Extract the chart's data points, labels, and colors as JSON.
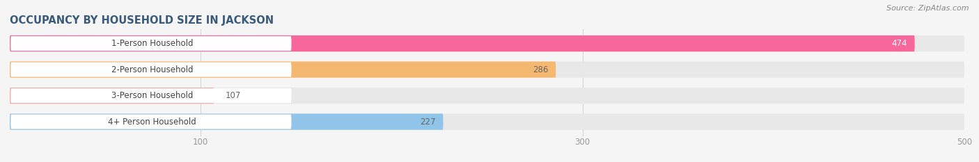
{
  "title": "OCCUPANCY BY HOUSEHOLD SIZE IN JACKSON",
  "source": "Source: ZipAtlas.com",
  "categories": [
    "1-Person Household",
    "2-Person Household",
    "3-Person Household",
    "4+ Person Household"
  ],
  "values": [
    474,
    286,
    107,
    227
  ],
  "bar_colors": [
    "#f7679a",
    "#f5b870",
    "#f5a8a8",
    "#90c4e8"
  ],
  "value_colors": [
    "#ffffff",
    "#666666",
    "#666666",
    "#666666"
  ],
  "row_bg_color": "#e8e8e8",
  "label_pill_color": "#ffffff",
  "xlim": [
    0,
    500
  ],
  "xticks": [
    100,
    300,
    500
  ],
  "background_color": "#f5f5f5",
  "title_color": "#3a5a7a",
  "title_fontsize": 10.5,
  "source_fontsize": 8,
  "label_fontsize": 8.5,
  "value_fontsize": 8.5
}
